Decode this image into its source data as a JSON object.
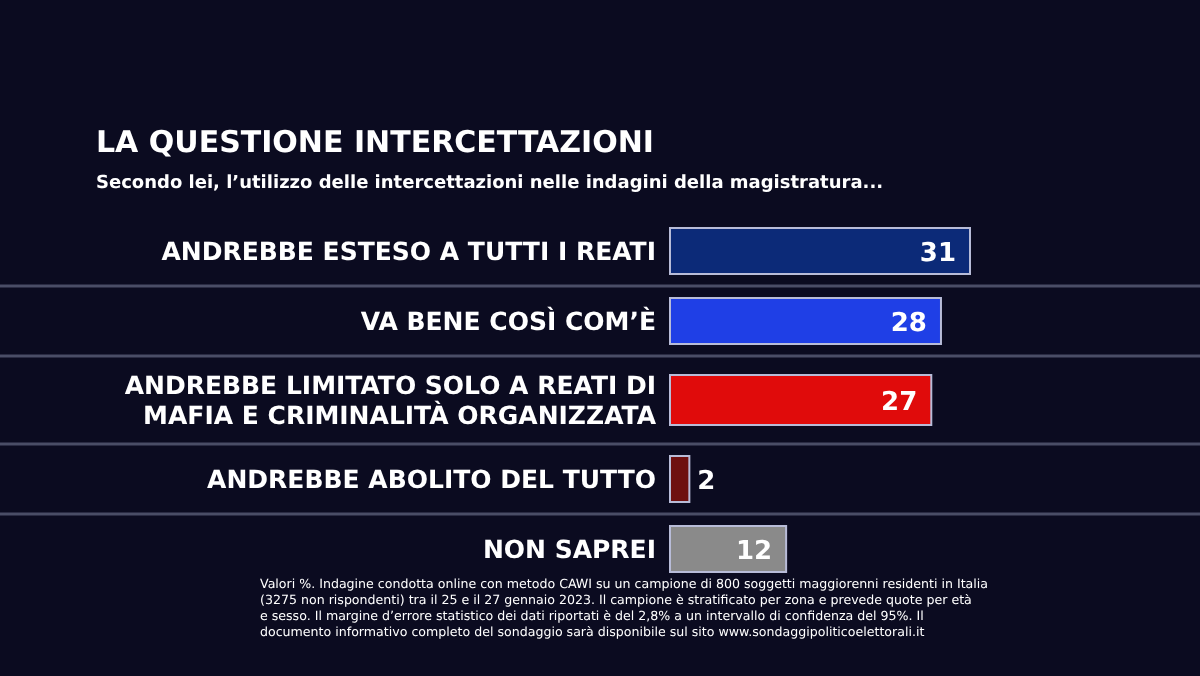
{
  "chart_data": {
    "type": "bar",
    "orientation": "horizontal",
    "title": "LA QUESTIONE INTERCETTAZIONI",
    "subtitle": "Secondo lei, l’utilizzo delle intercettazioni nelle indagini della magistratura...",
    "categories": [
      "ANDREBBE ESTESO A TUTTI I REATI",
      "VA BENE COSÌ COM’È",
      "ANDREBBE LIMITATO SOLO A REATI DI\nMAFIA E CRIMINALITÀ ORGANIZZATA",
      "ANDREBBE ABOLITO DEL TUTTO",
      "NON SAPREI"
    ],
    "values": [
      31,
      28,
      27,
      2,
      12
    ],
    "colors": [
      "#0c2a78",
      "#1f3fe6",
      "#e00b0b",
      "#6e1010",
      "#8a8a8a"
    ],
    "data_labels": true,
    "annotations": [
      "Valori %. Indagine condotta online con metodo CAWI su un campione di 800 soggetti maggiorenni residenti in Italia (3275 non rispondenti) tra il 25 e il 27 gennaio 2023. Il campione è stratificato per zona e prevede quote per età e sesso. Il margine d’errore statistico dei dati riportati è del 2,8% a un intervallo di confidenza del 95%. Il documento informativo completo del sondaggio sarà disponibile sul sito www.sondaggipoliticoelettorali.it"
    ]
  }
}
